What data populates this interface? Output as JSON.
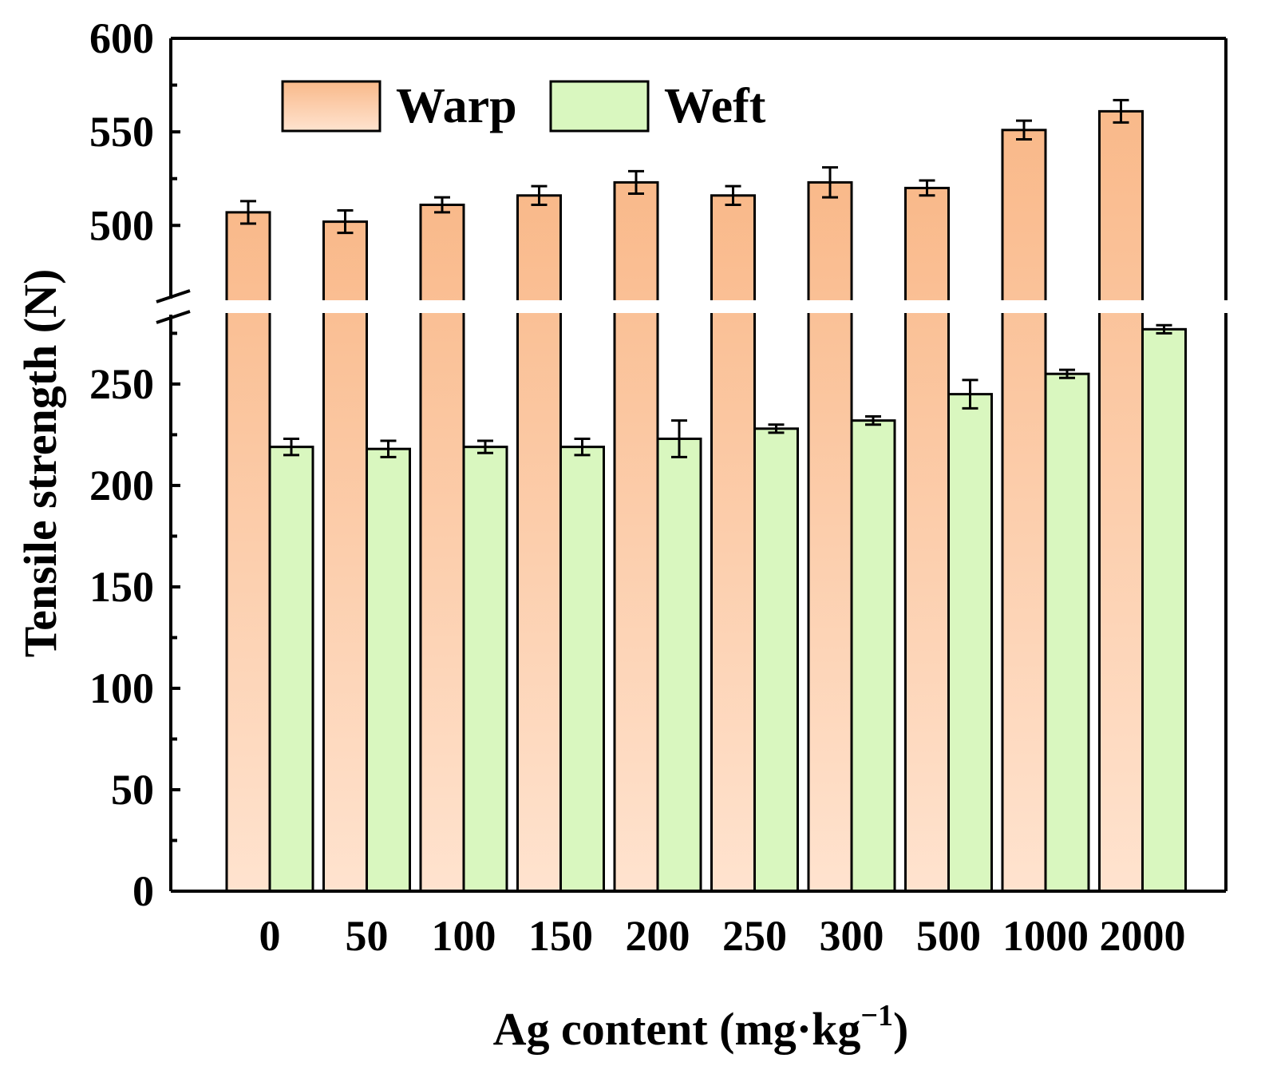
{
  "chart_data": {
    "type": "bar",
    "title": "",
    "xlabel_prefix": "Ag content (mg·kg",
    "xlabel_exponent": "−1",
    "xlabel_suffix": ")",
    "ylabel": "Tensile strength (N)",
    "categories": [
      "0",
      "50",
      "100",
      "150",
      "200",
      "250",
      "300",
      "500",
      "1000",
      "2000"
    ],
    "series": [
      {
        "name": "Warp",
        "values": [
          507,
          502,
          511,
          516,
          523,
          516,
          523,
          520,
          551,
          561
        ],
        "errors": [
          6,
          6,
          4,
          5,
          6,
          5,
          8,
          4,
          5,
          6
        ],
        "color_top": "#f9b98a",
        "color_bottom": "#ffe3cf"
      },
      {
        "name": "Weft",
        "values": [
          219,
          218,
          219,
          219,
          223,
          228,
          232,
          245,
          255,
          277
        ],
        "errors": [
          4,
          4,
          3,
          4,
          9,
          2,
          2,
          7,
          2,
          2
        ],
        "color_top": "#d9f7bf",
        "color_bottom": "#d9f7bf"
      }
    ],
    "axis_break": {
      "from": 285,
      "to": 460
    },
    "ylim": [
      0,
      600
    ],
    "y_ticks_lower": [
      "0",
      "50",
      "100",
      "150",
      "200",
      "250"
    ],
    "y_ticks_upper": [
      "500",
      "550",
      "600"
    ],
    "legend_position": "top-left",
    "grid": false
  }
}
